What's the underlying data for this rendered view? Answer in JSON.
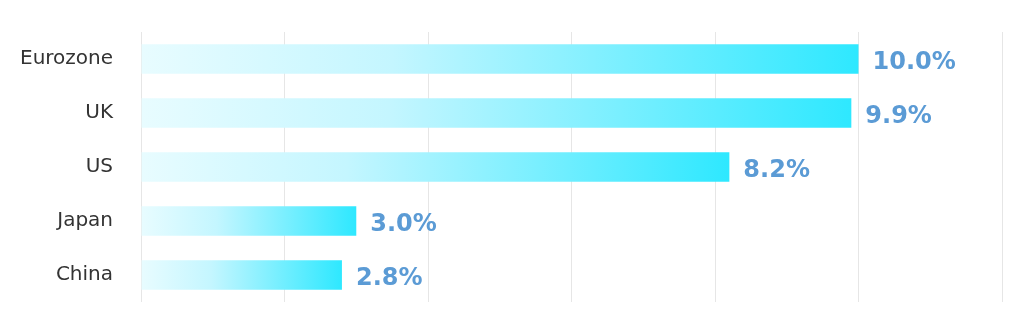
{
  "chart_data": {
    "type": "bar",
    "orientation": "horizontal",
    "categories": [
      "Eurozone",
      "UK",
      "US",
      "Japan",
      "China"
    ],
    "values": [
      10.0,
      9.9,
      8.2,
      3.0,
      2.8
    ],
    "value_labels": [
      "10.0%",
      "9.9%",
      "8.2%",
      "3.0%",
      "2.8%"
    ],
    "color": "#2ee8ff",
    "xlim": [
      0,
      12
    ],
    "xticks": [
      {
        "value": 0,
        "label": null
      },
      {
        "value": 2,
        "label": null
      },
      {
        "value": 4,
        "label": null
      },
      {
        "value": 6,
        "label": null
      },
      {
        "value": 8,
        "label": null
      },
      {
        "value": 10,
        "label": null
      },
      {
        "value": 12,
        "label": null
      }
    ],
    "grid": "x",
    "tick_labels": "y",
    "legend": false
  }
}
